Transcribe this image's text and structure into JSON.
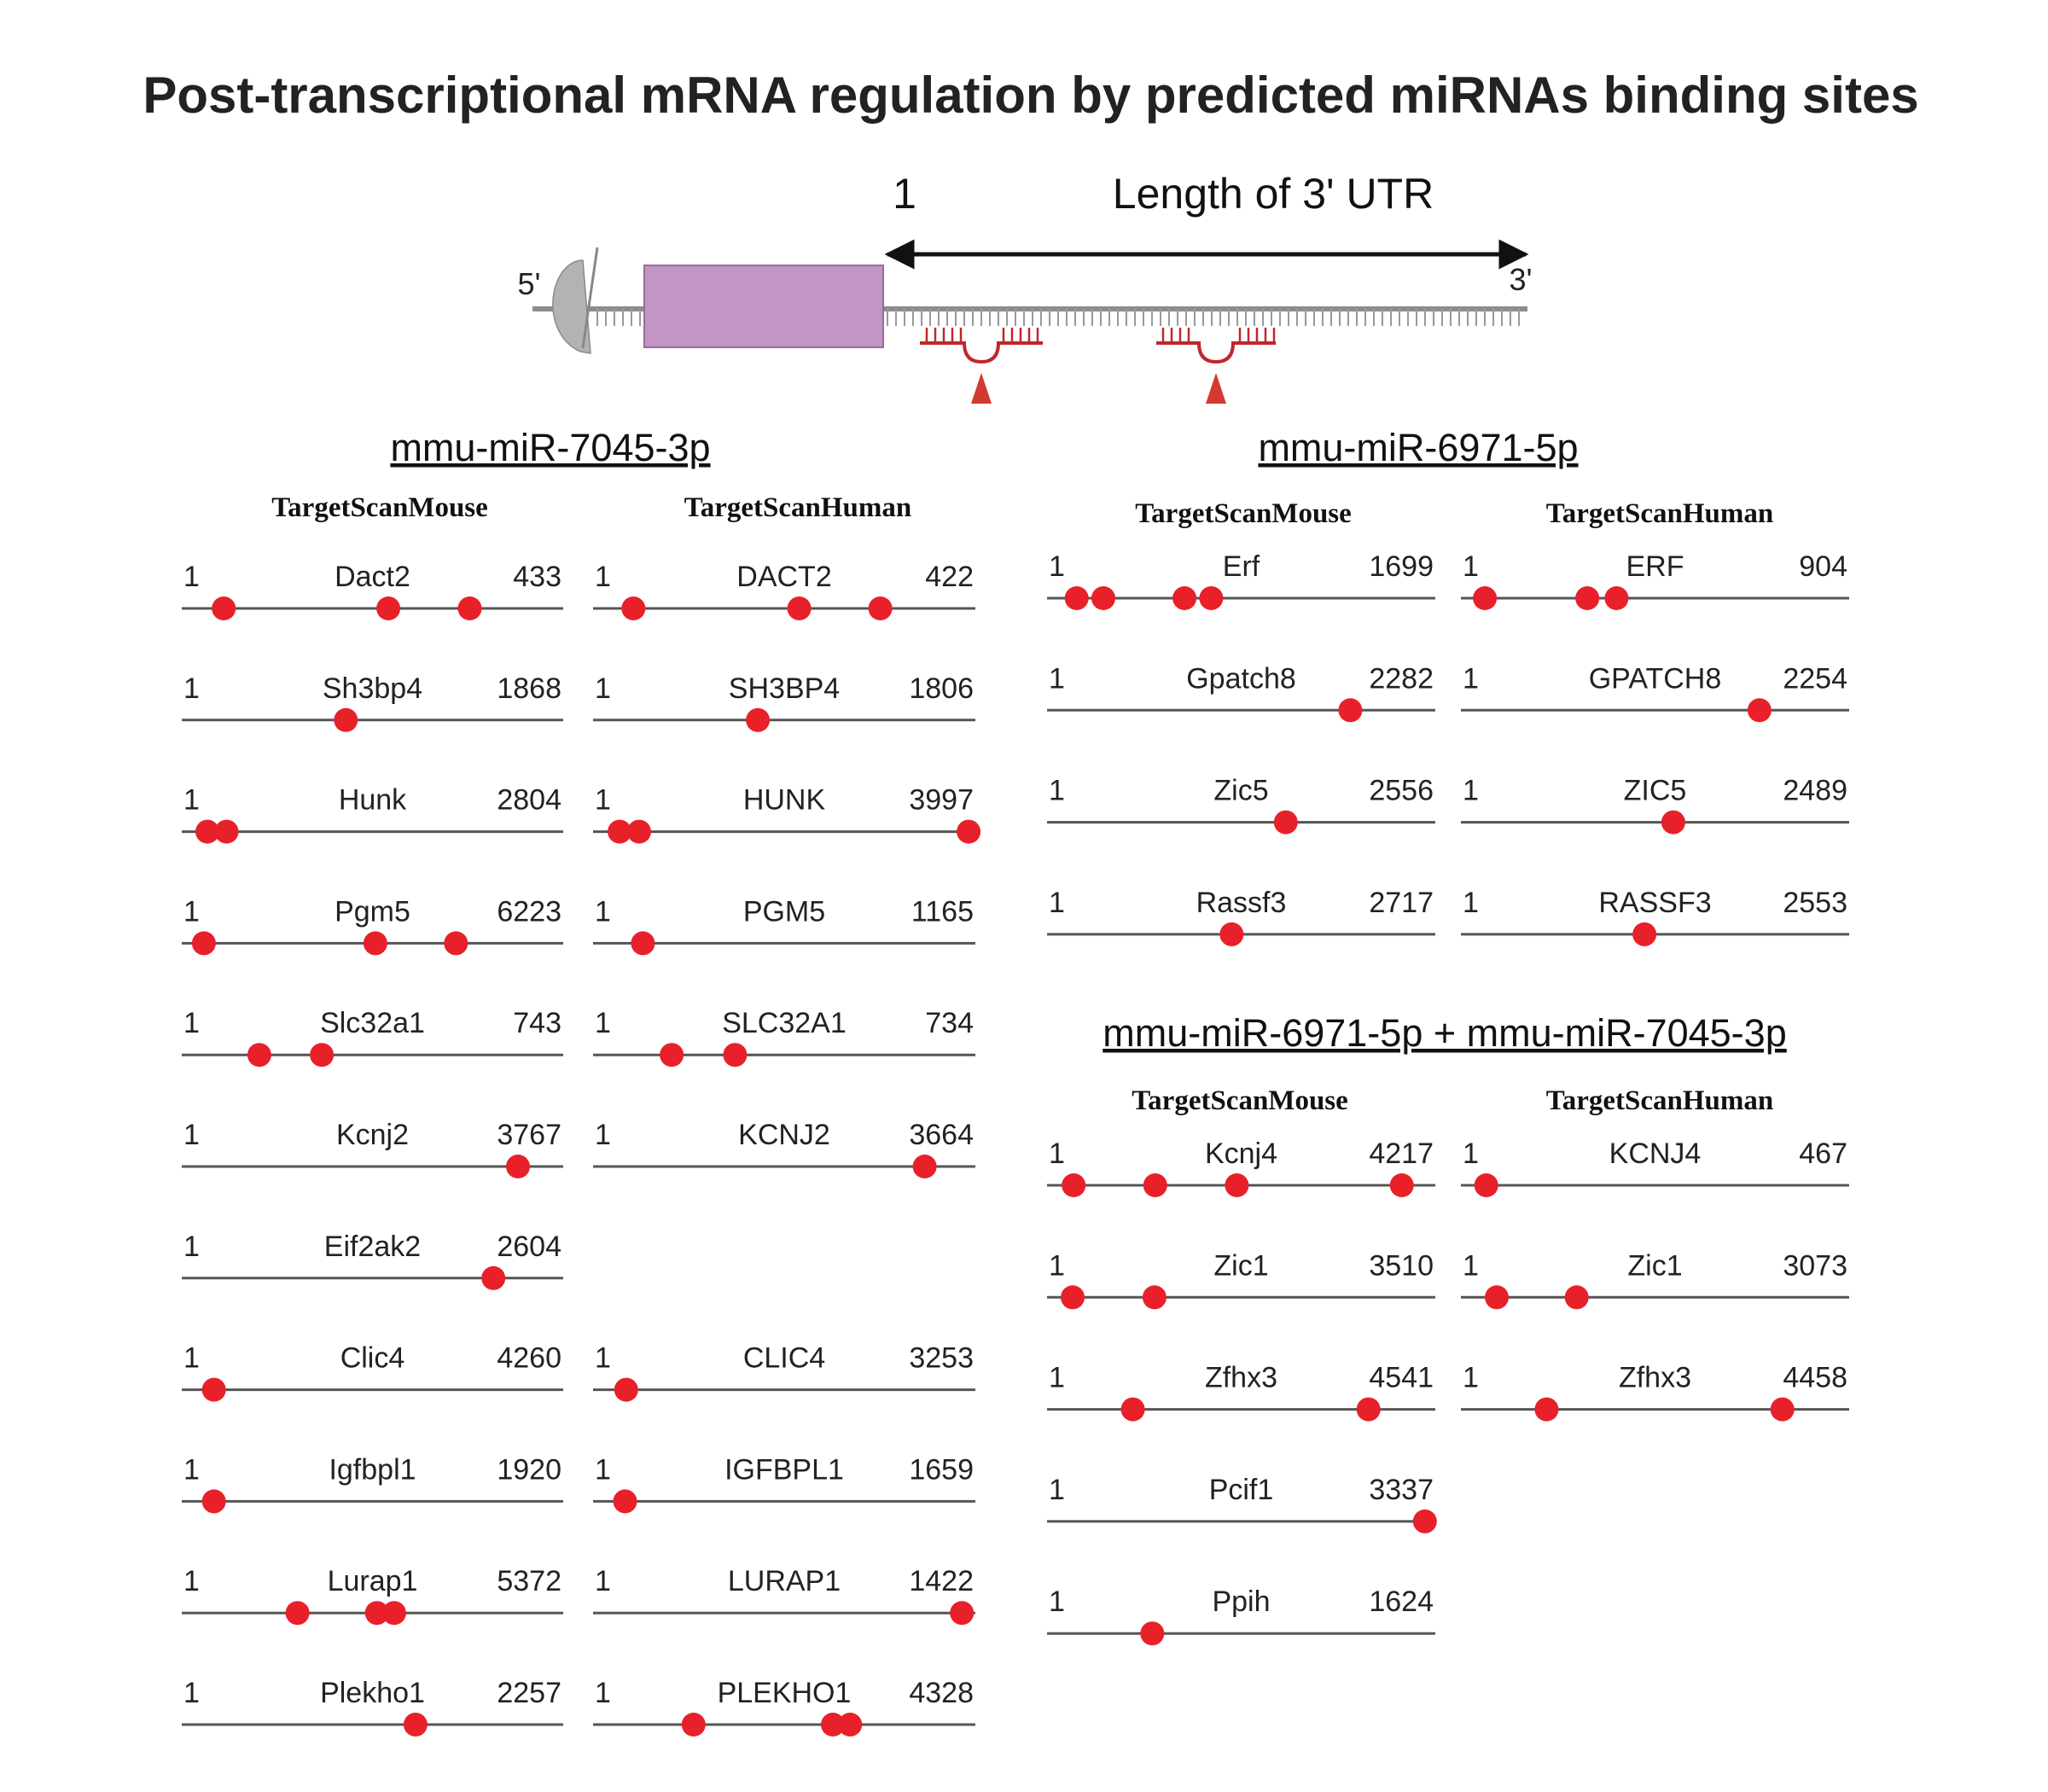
{
  "title": "Post-transcriptional mRNA regulation by predicted miRNAs binding sites",
  "schematic": {
    "start_label": "1",
    "length_label": "Length of 3' UTR",
    "five_prime": "5'",
    "three_prime": "3'"
  },
  "colors": {
    "site": "#e8202a",
    "cds": "#c196c4",
    "mirna": "#c0272d",
    "cap": "#b3b3b3",
    "line": "#555555"
  },
  "panels": [
    {
      "title": "mmu-miR-7045-3p",
      "db_left": "TargetScanMouse",
      "db_right": "TargetScanHuman",
      "rows": [
        {
          "mouse": {
            "gene": "Dact2",
            "length": 433,
            "sites": [
              43,
              235,
              330
            ]
          },
          "human": {
            "gene": "DACT2",
            "length": 422,
            "sites": [
              40,
              228,
              320
            ]
          }
        },
        {
          "mouse": {
            "gene": "Sh3bp4",
            "length": 1868,
            "sites": [
              800
            ]
          },
          "human": {
            "gene": "SH3BP4",
            "length": 1806,
            "sites": [
              775
            ]
          }
        },
        {
          "mouse": {
            "gene": "Hunk",
            "length": 2804,
            "sites": [
              155,
              300
            ]
          },
          "human": {
            "gene": "HUNK",
            "length": 3997,
            "sites": [
              230,
              440,
              3980
            ]
          }
        },
        {
          "mouse": {
            "gene": "Pgm5",
            "length": 6223,
            "sites": [
              285,
              3160,
              4510
            ]
          },
          "human": {
            "gene": "PGM5",
            "length": 1165,
            "sites": [
              140
            ]
          }
        },
        {
          "mouse": {
            "gene": "Slc32a1",
            "length": 743,
            "sites": [
              145,
              270
            ]
          },
          "human": {
            "gene": "SLC32A1",
            "length": 734,
            "sites": [
              145,
              270
            ]
          }
        },
        {
          "mouse": {
            "gene": "Kcnj2",
            "length": 3767,
            "sites": [
              3360
            ]
          },
          "human": {
            "gene": "KCNJ2",
            "length": 3664,
            "sites": [
              3215
            ]
          }
        },
        {
          "mouse": {
            "gene": "Eif2ak2",
            "length": 2604,
            "sites": [
              2150
            ]
          },
          "human": null
        },
        {
          "mouse": {
            "gene": "Clic4",
            "length": 4260,
            "sites": [
              310
            ]
          },
          "human": {
            "gene": "CLIC4",
            "length": 3253,
            "sites": [
              245
            ]
          }
        },
        {
          "mouse": {
            "gene": "Igfbpl1",
            "length": 1920,
            "sites": [
              140
            ]
          },
          "human": {
            "gene": "IGFBPL1",
            "length": 1659,
            "sites": [
              120
            ]
          }
        },
        {
          "mouse": {
            "gene": "Lurap1",
            "length": 5372,
            "sites": [
              1600,
              2750,
              3000
            ]
          },
          "human": {
            "gene": "LURAP1",
            "length": 1422,
            "sites": [
              1390
            ]
          }
        },
        {
          "mouse": {
            "gene": "Plekho1",
            "length": 2257,
            "sites": [
              1390
            ]
          },
          "human": {
            "gene": "PLEKHO1",
            "length": 4328,
            "sites": [
              1110,
              2730,
              2930
            ]
          }
        }
      ]
    },
    {
      "title": "mmu-miR-6971-5p",
      "db_left": "TargetScanMouse",
      "db_right": "TargetScanHuman",
      "rows": [
        {
          "mouse": {
            "gene": "Erf",
            "length": 1699,
            "sites": [
              110,
              230,
              595,
              715
            ]
          },
          "human": {
            "gene": "ERF",
            "length": 904,
            "sites": [
              45,
              290,
              360
            ]
          }
        },
        {
          "mouse": {
            "gene": "Gpatch8",
            "length": 2282,
            "sites": [
              1800
            ]
          },
          "human": {
            "gene": "GPATCH8",
            "length": 2254,
            "sites": [
              1750
            ]
          }
        },
        {
          "mouse": {
            "gene": "Zic5",
            "length": 2556,
            "sites": [
              1580
            ]
          },
          "human": {
            "gene": "ZIC5",
            "length": 2489,
            "sites": [
              1365
            ]
          }
        },
        {
          "mouse": {
            "gene": "Rassf3",
            "length": 2717,
            "sites": [
              1290
            ]
          },
          "human": {
            "gene": "RASSF3",
            "length": 2553,
            "sites": [
              1205
            ]
          }
        }
      ]
    },
    {
      "title": "mmu-miR-6971-5p + mmu-miR-7045-3p",
      "db_left": "TargetScanMouse",
      "db_right": "TargetScanHuman",
      "rows": [
        {
          "mouse": {
            "gene": "Kcnj4",
            "length": 4217,
            "sites": [
              240,
              1150,
              2060,
              3900
            ]
          },
          "human": {
            "gene": "KCNJ4",
            "length": 467,
            "sites": [
              25
            ]
          }
        },
        {
          "mouse": {
            "gene": "Zic1",
            "length": 3510,
            "sites": [
              190,
              950
            ]
          },
          "human": {
            "gene": "Zic1",
            "length": 3073,
            "sites": [
              250,
              900
            ]
          }
        },
        {
          "mouse": {
            "gene": "Zfhx3",
            "length": 4541,
            "sites": [
              970,
              3800
            ]
          },
          "human": {
            "gene": "Zfhx3",
            "length": 4458,
            "sites": [
              950,
              3730
            ]
          }
        },
        {
          "mouse": {
            "gene": "Pcif1",
            "length": 3337,
            "sites": [
              3290
            ]
          },
          "human": null
        },
        {
          "mouse": {
            "gene": "Ppih",
            "length": 1624,
            "sites": [
              430
            ]
          },
          "human": null
        }
      ]
    }
  ]
}
